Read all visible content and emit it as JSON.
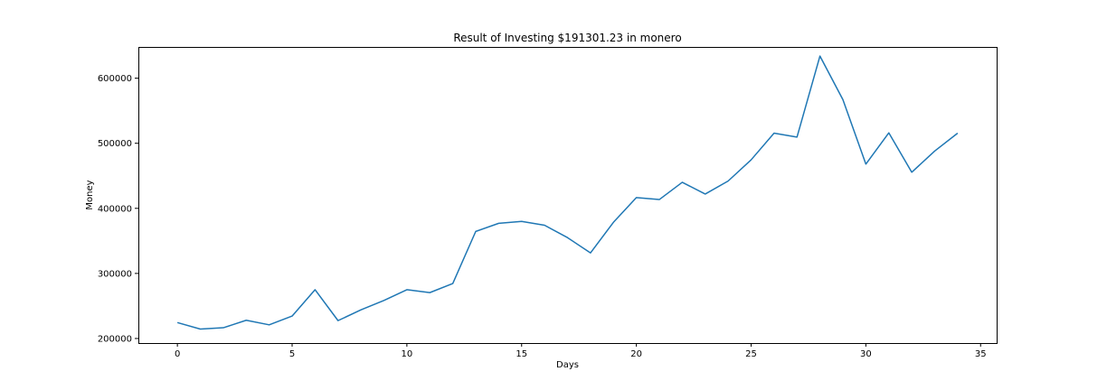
{
  "chart_data": {
    "type": "line",
    "title": "Result of Investing $191301.23 in monero",
    "xlabel": "Days",
    "ylabel": "Money",
    "xlim": [
      -1.7,
      35.7
    ],
    "ylim": [
      193000,
      648000
    ],
    "xticks": [
      0,
      5,
      10,
      15,
      20,
      25,
      30,
      35
    ],
    "yticks": [
      200000,
      300000,
      400000,
      500000,
      600000
    ],
    "grid": false,
    "color": "#1f77b4",
    "series": [
      {
        "x": [
          0,
          1,
          2,
          3,
          4,
          5,
          6,
          7,
          8,
          9,
          10,
          11,
          12,
          13,
          14,
          15,
          16,
          17,
          18,
          19,
          20,
          21,
          22,
          23,
          24,
          25,
          26,
          27,
          28,
          29,
          30,
          31,
          32,
          33,
          34
        ],
        "values": [
          224500,
          214500,
          216500,
          228000,
          221000,
          234500,
          275000,
          227500,
          244000,
          258500,
          275000,
          270500,
          284500,
          364500,
          377000,
          380000,
          374000,
          355000,
          331500,
          378500,
          416500,
          413500,
          440000,
          422000,
          442000,
          474500,
          515500,
          509500,
          634000,
          567000,
          468000,
          516000,
          455500,
          488000,
          515500
        ]
      }
    ]
  }
}
